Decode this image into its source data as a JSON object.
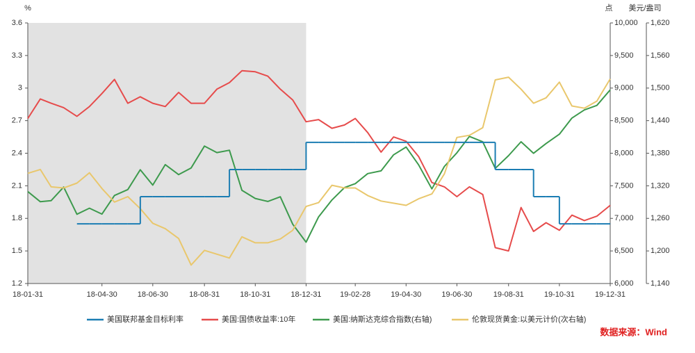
{
  "chart_data": {
    "type": "line",
    "ylabel": "%",
    "y2label": "点",
    "y3label": "美元/盎司",
    "source": "数据来源：Wind",
    "shaded_xrange": [
      "18-01-31",
      "18-12-31"
    ],
    "x": [
      "18-01-31",
      "18-02-15",
      "18-02-28",
      "18-03-15",
      "18-03-31",
      "18-04-15",
      "18-04-30",
      "18-05-15",
      "18-05-31",
      "18-06-15",
      "18-06-30",
      "18-07-15",
      "18-07-31",
      "18-08-15",
      "18-08-31",
      "18-09-15",
      "18-09-30",
      "18-10-15",
      "18-10-31",
      "18-11-15",
      "18-11-30",
      "18-12-15",
      "18-12-31",
      "19-01-15",
      "19-01-31",
      "19-02-15",
      "19-02-28",
      "19-03-15",
      "19-03-31",
      "19-04-15",
      "19-04-30",
      "19-05-15",
      "19-05-31",
      "19-06-15",
      "19-06-30",
      "19-07-15",
      "19-07-31",
      "19-08-15",
      "19-08-31",
      "19-09-15",
      "19-09-30",
      "19-10-15",
      "19-10-31",
      "19-11-15",
      "19-11-30",
      "19-12-15",
      "19-12-31"
    ],
    "xlim": [
      "18-01-31",
      "19-12-31"
    ],
    "xticks": [
      "18-01-31",
      "18-04-30",
      "18-06-30",
      "18-08-31",
      "18-10-31",
      "18-12-31",
      "19-02-28",
      "19-04-30",
      "19-06-30",
      "19-08-31",
      "19-10-31",
      "19-12-31"
    ],
    "ylim": [
      1.2,
      3.6
    ],
    "yticks": [
      1.2,
      1.5,
      1.8,
      2.1,
      2.4,
      2.7,
      3,
      3.3,
      3.6
    ],
    "y2lim": [
      6000,
      10000
    ],
    "y2ticks": [
      {
        "value": 6000,
        "label": "6,000"
      },
      {
        "value": 6500,
        "label": "6,500"
      },
      {
        "value": 7000,
        "label": "7,000"
      },
      {
        "value": 7500,
        "label": "7,500"
      },
      {
        "value": 8000,
        "label": "8,000"
      },
      {
        "value": 8500,
        "label": "8,500"
      },
      {
        "value": 9000,
        "label": "9,000"
      },
      {
        "value": 9500,
        "label": "9,500"
      },
      {
        "value": 10000,
        "label": "10,000"
      }
    ],
    "y3lim": [
      1140,
      1620
    ],
    "y3ticks": [
      {
        "value": 1140,
        "label": "1,140"
      },
      {
        "value": 1200,
        "label": "1,200"
      },
      {
        "value": 1260,
        "label": "1,260"
      },
      {
        "value": 1320,
        "label": "1,320"
      },
      {
        "value": 1380,
        "label": "1,380"
      },
      {
        "value": 1440,
        "label": "1,440"
      },
      {
        "value": 1500,
        "label": "1,500"
      },
      {
        "value": 1560,
        "label": "1,560"
      },
      {
        "value": 1620,
        "label": "1,620"
      }
    ],
    "series": [
      {
        "name": "美国:国债收益率:10年",
        "color": "#e64b4b",
        "values": [
          2.72,
          2.9,
          2.86,
          2.82,
          2.74,
          2.83,
          2.95,
          3.08,
          2.86,
          2.92,
          2.86,
          2.83,
          2.96,
          2.86,
          2.86,
          2.99,
          3.05,
          3.16,
          3.15,
          3.11,
          2.99,
          2.89,
          2.69,
          2.71,
          2.63,
          2.66,
          2.72,
          2.59,
          2.41,
          2.55,
          2.51,
          2.37,
          2.13,
          2.09,
          2.0,
          2.09,
          2.02,
          1.53,
          1.5,
          1.9,
          1.68,
          1.76,
          1.69,
          1.83,
          1.78,
          1.82,
          1.92
        ]
      },
      {
        "name": "美国:纳斯达克综合指数(右轴)",
        "color": "#3d9a4d",
        "axis": "y2",
        "values": [
          7411,
          7256,
          7273,
          7481,
          7063,
          7156,
          7066,
          7351,
          7442,
          7746,
          7510,
          7825,
          7672,
          7774,
          8110,
          8010,
          8046,
          7430,
          7306,
          7260,
          7331,
          6910,
          6635,
          7023,
          7282,
          7472,
          7533,
          7688,
          7729,
          7976,
          8095,
          7822,
          7453,
          7797,
          8006,
          8258,
          8175,
          7767,
          7963,
          8176,
          7999,
          8148,
          8292,
          8540,
          8665,
          8734,
          8973
        ]
      },
      {
        "name": "伦敦现货黄金:以美元计价(次右轴)",
        "color": "#e9c76c",
        "axis": "y3",
        "values": [
          1343,
          1350,
          1318,
          1316,
          1325,
          1344,
          1315,
          1290,
          1300,
          1278,
          1251,
          1241,
          1223,
          1174,
          1201,
          1194,
          1187,
          1226,
          1215,
          1215,
          1222,
          1238,
          1282,
          1289,
          1321,
          1316,
          1316,
          1302,
          1292,
          1288,
          1284,
          1296,
          1305,
          1342,
          1409,
          1413,
          1427,
          1515,
          1520,
          1498,
          1472,
          1482,
          1511,
          1467,
          1463,
          1476,
          1517
        ]
      },
      {
        "name": "美国联邦基金目标利率",
        "color": "#1b7db3",
        "step": true,
        "values": [
          null,
          null,
          null,
          null,
          1.75,
          1.75,
          1.75,
          1.75,
          1.75,
          2,
          2,
          2,
          2,
          2,
          2,
          2,
          2.25,
          2.25,
          2.25,
          2.25,
          2.25,
          2.25,
          2.5,
          2.5,
          2.5,
          2.5,
          2.5,
          2.5,
          2.5,
          2.5,
          2.5,
          2.5,
          2.5,
          2.5,
          2.5,
          2.5,
          2.5,
          2.25,
          2.25,
          2.25,
          2,
          2,
          1.75,
          1.75,
          1.75,
          1.75,
          1.75
        ]
      }
    ],
    "legend_order": [
      3,
      0,
      1,
      2
    ]
  }
}
